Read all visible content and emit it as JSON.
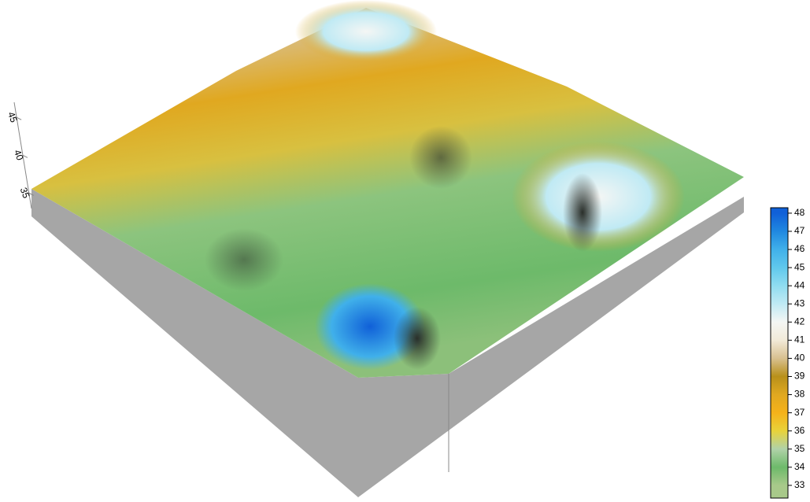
{
  "chart_data": {
    "type": "surface",
    "zlim": [
      34,
      47
    ],
    "zticks": [
      35,
      40,
      45
    ],
    "colorbar": {
      "lim": [
        32.3,
        48.3
      ],
      "ticks": [
        33,
        34,
        35,
        36,
        37,
        38,
        39,
        40,
        41,
        42,
        43,
        44,
        45,
        46,
        47,
        48
      ],
      "colors": [
        "#a8c98a",
        "#6dba6a",
        "#b0d2a8",
        "#e8d23a",
        "#f5b21a",
        "#e0a820",
        "#b8901a",
        "#d8c090",
        "#f2ead8",
        "#f4f6f4",
        "#c0eaf4",
        "#90dcf0",
        "#60c8ec",
        "#40b0ea",
        "#2088e0",
        "#1060d8"
      ]
    }
  }
}
